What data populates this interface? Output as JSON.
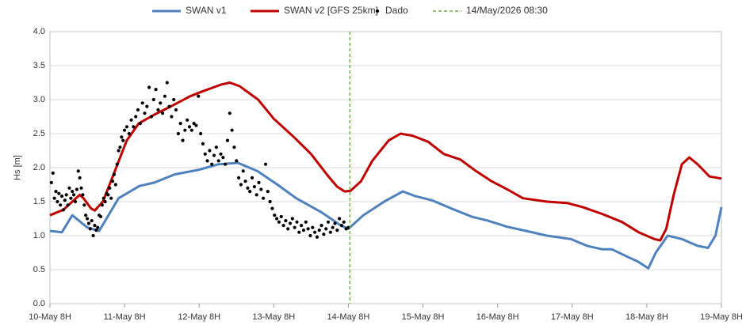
{
  "chart_data": {
    "type": "line",
    "y_label": "Hs [m]",
    "xlim": [
      0,
      9
    ],
    "ylim": [
      0,
      4
    ],
    "grid": true,
    "legend": "top",
    "xticks": [
      {
        "value": 0,
        "label": "10-May 8H"
      },
      {
        "value": 1,
        "label": "11-May 8H"
      },
      {
        "value": 2,
        "label": "12-May 8H"
      },
      {
        "value": 3,
        "label": "13-May 8H"
      },
      {
        "value": 4,
        "label": "14-May 8H"
      },
      {
        "value": 5,
        "label": "15-May 8H"
      },
      {
        "value": 6,
        "label": "16-May 8H"
      },
      {
        "value": 7,
        "label": "17-May 8H"
      },
      {
        "value": 8,
        "label": "18-May 8H"
      },
      {
        "value": 9,
        "label": "19-May 8H"
      }
    ],
    "yticks": [
      {
        "value": 0,
        "label": "0.0"
      },
      {
        "value": 0.5,
        "label": "0.5"
      },
      {
        "value": 1,
        "label": "1.0"
      },
      {
        "value": 1.5,
        "label": "1.5"
      },
      {
        "value": 2,
        "label": "2.0"
      },
      {
        "value": 2.5,
        "label": "2.5"
      },
      {
        "value": 3,
        "label": "3.0"
      },
      {
        "value": 3.5,
        "label": "3.5"
      },
      {
        "value": 4,
        "label": "4.0"
      }
    ],
    "series": [
      {
        "name": "SWAN v1",
        "kind": "line",
        "color": "#4f81bd",
        "x": [
          0,
          0.16,
          0.3,
          0.5,
          0.66,
          0.92,
          1.2,
          1.4,
          1.67,
          2.0,
          2.26,
          2.52,
          2.78,
          3.05,
          3.3,
          3.63,
          3.9,
          4.0,
          4.2,
          4.48,
          4.73,
          4.9,
          5.12,
          5.38,
          5.65,
          5.87,
          6.13,
          6.34,
          6.66,
          6.98,
          7.2,
          7.4,
          7.53,
          7.72,
          7.88,
          8.02,
          8.12,
          8.28,
          8.47,
          8.68,
          8.82,
          8.92,
          9.0
        ],
        "values": [
          1.07,
          1.05,
          1.3,
          1.12,
          1.07,
          1.55,
          1.73,
          1.78,
          1.9,
          1.97,
          2.05,
          2.07,
          1.95,
          1.75,
          1.55,
          1.35,
          1.15,
          1.1,
          1.3,
          1.5,
          1.65,
          1.58,
          1.52,
          1.4,
          1.28,
          1.22,
          1.13,
          1.08,
          1.0,
          0.95,
          0.85,
          0.8,
          0.8,
          0.7,
          0.62,
          0.52,
          0.75,
          1.0,
          0.95,
          0.85,
          0.82,
          1.0,
          1.42
        ]
      },
      {
        "name": "SWAN v2 [GFS 25km]",
        "kind": "line",
        "color": "#c00000",
        "x": [
          0,
          0.18,
          0.3,
          0.4,
          0.45,
          0.55,
          0.6,
          0.71,
          0.87,
          1.03,
          1.19,
          1.4,
          1.62,
          1.88,
          2.04,
          2.29,
          2.41,
          2.54,
          2.79,
          3.0,
          3.27,
          3.5,
          3.71,
          3.85,
          3.95,
          4.03,
          4.17,
          4.32,
          4.54,
          4.7,
          4.86,
          5.07,
          5.28,
          5.5,
          5.71,
          5.92,
          6.13,
          6.34,
          6.66,
          6.93,
          7.14,
          7.4,
          7.67,
          7.89,
          8.1,
          8.18,
          8.26,
          8.36,
          8.47,
          8.57,
          8.68,
          8.84,
          9.0
        ],
        "values": [
          1.3,
          1.38,
          1.5,
          1.6,
          1.55,
          1.4,
          1.37,
          1.5,
          1.95,
          2.4,
          2.65,
          2.78,
          2.9,
          3.05,
          3.12,
          3.22,
          3.25,
          3.2,
          3.0,
          2.72,
          2.45,
          2.2,
          1.9,
          1.72,
          1.65,
          1.66,
          1.8,
          2.1,
          2.4,
          2.5,
          2.47,
          2.38,
          2.2,
          2.12,
          1.95,
          1.8,
          1.68,
          1.55,
          1.5,
          1.48,
          1.42,
          1.32,
          1.2,
          1.05,
          0.95,
          0.93,
          1.1,
          1.6,
          2.05,
          2.15,
          2.05,
          1.87,
          1.84
        ]
      },
      {
        "name": "Dado",
        "kind": "scatter",
        "color": "#000000",
        "x": [
          0.02,
          0.04,
          0.06,
          0.08,
          0.1,
          0.12,
          0.14,
          0.16,
          0.18,
          0.2,
          0.22,
          0.24,
          0.26,
          0.28,
          0.3,
          0.32,
          0.34,
          0.36,
          0.38,
          0.4,
          0.42,
          0.44,
          0.46,
          0.48,
          0.5,
          0.52,
          0.54,
          0.56,
          0.58,
          0.6,
          0.62,
          0.64,
          0.66,
          0.68,
          0.7,
          0.72,
          0.74,
          0.76,
          0.78,
          0.8,
          0.82,
          0.84,
          0.86,
          0.88,
          0.9,
          0.92,
          0.94,
          0.96,
          0.98,
          1.0,
          1.03,
          1.06,
          1.09,
          1.12,
          1.15,
          1.18,
          1.21,
          1.24,
          1.27,
          1.3,
          1.33,
          1.36,
          1.39,
          1.42,
          1.45,
          1.48,
          1.51,
          1.54,
          1.57,
          1.6,
          1.63,
          1.66,
          1.69,
          1.72,
          1.75,
          1.78,
          1.81,
          1.84,
          1.87,
          1.9,
          1.93,
          1.96,
          1.99,
          2.02,
          2.05,
          2.08,
          2.11,
          2.14,
          2.17,
          2.2,
          2.23,
          2.26,
          2.29,
          2.32,
          2.35,
          2.38,
          2.41,
          2.44,
          2.47,
          2.5,
          2.53,
          2.56,
          2.59,
          2.62,
          2.65,
          2.68,
          2.71,
          2.74,
          2.77,
          2.8,
          2.83,
          2.86,
          2.89,
          2.92,
          2.95,
          2.98,
          3.01,
          3.04,
          3.07,
          3.1,
          3.13,
          3.16,
          3.19,
          3.22,
          3.25,
          3.28,
          3.31,
          3.34,
          3.37,
          3.4,
          3.43,
          3.46,
          3.49,
          3.52,
          3.55,
          3.58,
          3.61,
          3.64,
          3.67,
          3.7,
          3.73,
          3.76,
          3.79,
          3.82,
          3.85,
          3.88,
          3.91,
          3.94,
          3.97,
          4.0
        ],
        "values": [
          1.78,
          1.92,
          1.55,
          1.65,
          1.5,
          1.62,
          1.45,
          1.58,
          1.38,
          1.52,
          1.6,
          1.45,
          1.7,
          1.55,
          1.65,
          1.6,
          1.5,
          1.68,
          1.95,
          1.85,
          1.7,
          1.6,
          1.45,
          1.3,
          1.25,
          1.18,
          1.1,
          1.22,
          1.0,
          1.15,
          1.08,
          1.12,
          1.3,
          1.28,
          1.45,
          1.55,
          1.5,
          1.62,
          1.6,
          1.7,
          1.55,
          1.8,
          1.9,
          1.75,
          2.05,
          2.25,
          2.3,
          2.45,
          2.4,
          2.55,
          2.6,
          2.5,
          2.7,
          2.6,
          2.75,
          2.85,
          2.65,
          2.95,
          2.8,
          2.9,
          3.18,
          2.75,
          3.0,
          3.15,
          2.85,
          2.95,
          2.8,
          3.05,
          3.25,
          2.9,
          2.75,
          3.0,
          2.85,
          2.5,
          2.65,
          2.4,
          2.55,
          2.7,
          2.6,
          2.55,
          2.65,
          2.62,
          3.05,
          2.5,
          2.35,
          2.2,
          2.1,
          2.25,
          2.05,
          2.18,
          2.3,
          2.1,
          2.2,
          2.15,
          2.05,
          2.4,
          2.8,
          2.55,
          2.3,
          2.1,
          1.85,
          1.75,
          1.95,
          1.8,
          1.7,
          1.65,
          1.85,
          1.72,
          1.6,
          1.78,
          1.68,
          1.55,
          2.05,
          1.65,
          1.5,
          1.4,
          1.3,
          1.25,
          1.2,
          1.28,
          1.15,
          1.22,
          1.1,
          1.18,
          1.25,
          1.12,
          1.2,
          1.05,
          1.15,
          1.08,
          1.2,
          1.1,
          1.0,
          1.12,
          1.05,
          0.98,
          1.08,
          1.15,
          1.02,
          1.1,
          1.2,
          1.05,
          1.12,
          1.18,
          1.08,
          1.25,
          1.15,
          1.2,
          1.1,
          1.12
        ]
      },
      {
        "name": "14/May/2026 08:30",
        "kind": "vline",
        "color": "#70ad47",
        "x": 4.0208
      }
    ]
  }
}
